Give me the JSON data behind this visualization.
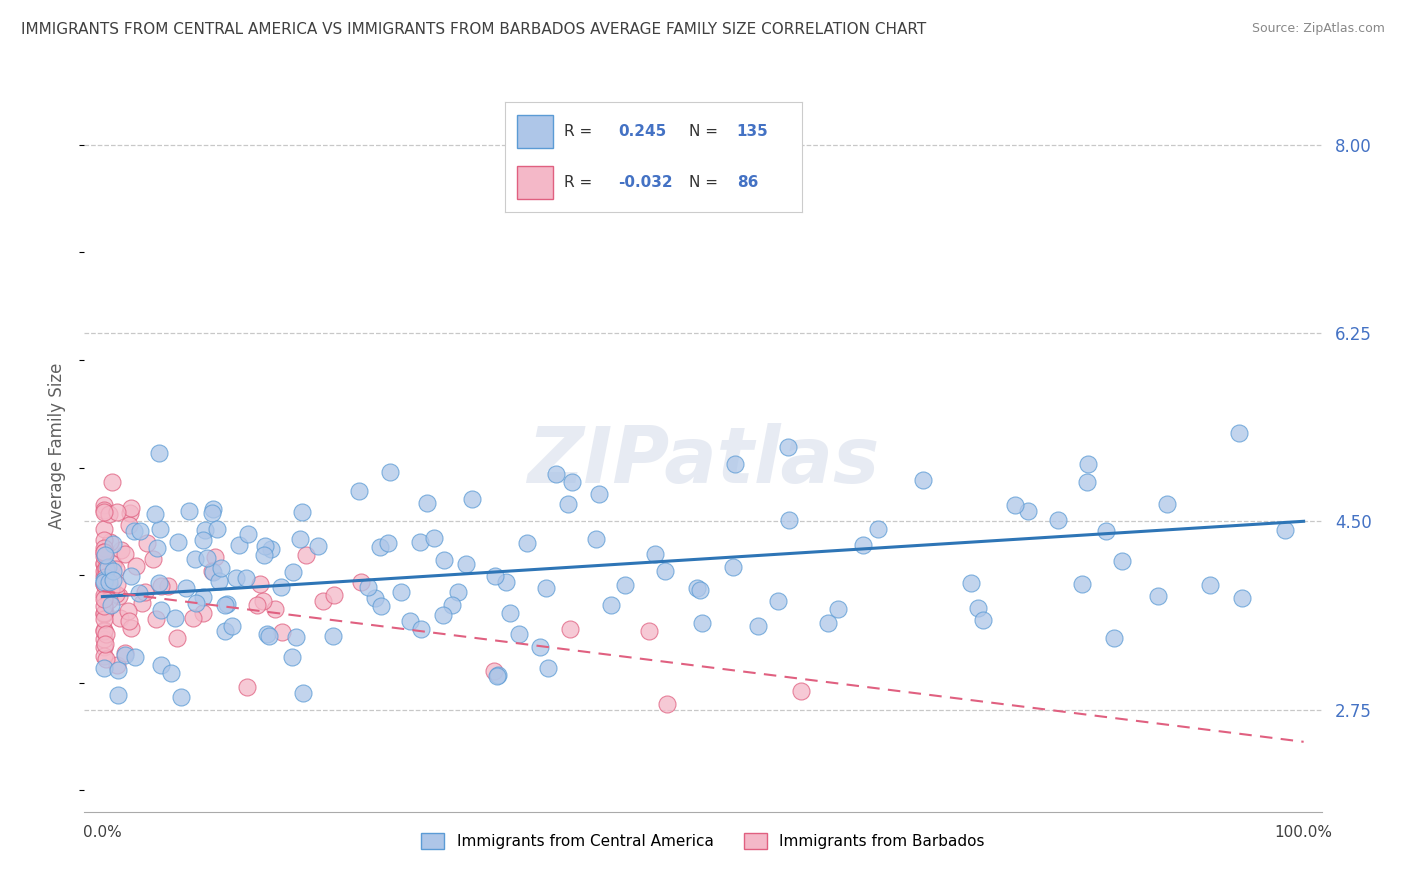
{
  "title": "IMMIGRANTS FROM CENTRAL AMERICA VS IMMIGRANTS FROM BARBADOS AVERAGE FAMILY SIZE CORRELATION CHART",
  "source": "Source: ZipAtlas.com",
  "ylabel": "Average Family Size",
  "r_blue": 0.245,
  "n_blue": 135,
  "r_pink": -0.032,
  "n_pink": 86,
  "ylim": [
    1.8,
    8.6
  ],
  "xlim": [
    -0.015,
    1.015
  ],
  "yticks": [
    2.75,
    4.5,
    6.25,
    8.0
  ],
  "xtick_labels": [
    "0.0%",
    "100.0%"
  ],
  "xtick_positions": [
    0.0,
    1.0
  ],
  "blue_color": "#aec6e8",
  "blue_edge_color": "#5b9bd5",
  "pink_color": "#f4b8c8",
  "pink_edge_color": "#e06080",
  "trend_blue_color": "#2e75b6",
  "trend_pink_color": "#e06080",
  "watermark": "ZIPatlas",
  "legend_label_blue": "Immigrants from Central America",
  "legend_label_pink": "Immigrants from Barbados",
  "background_color": "#ffffff",
  "grid_color": "#c8c8c8",
  "right_label_color": "#4472c4",
  "title_color": "#404040",
  "blue_intercept": 3.8,
  "blue_slope": 0.7,
  "pink_intercept": 3.85,
  "pink_slope": -1.4,
  "seed": 7
}
